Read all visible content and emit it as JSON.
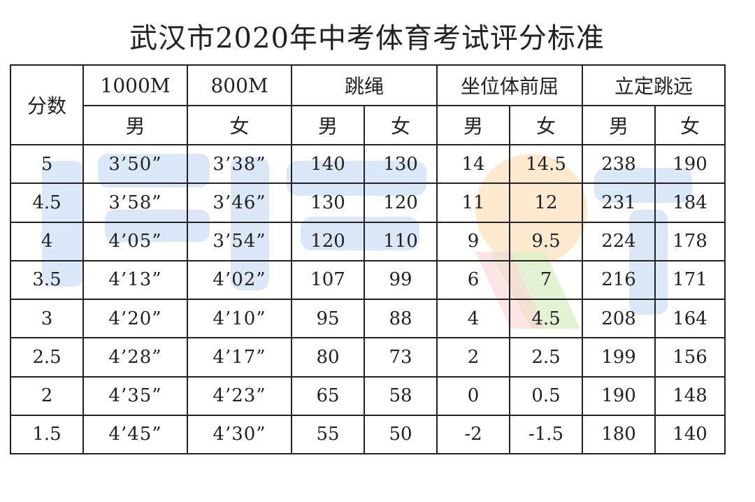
{
  "title": "武汉市2020年中考体育考试评分标准",
  "colors": {
    "border": "#222222",
    "watermark_blue": "#cfe0f5",
    "watermark_orange": "#fde2c4",
    "watermark_green": "#dcefc8"
  },
  "header": {
    "score_label": "分数",
    "events": [
      "1000M",
      "800M",
      "跳绳",
      "坐位体前屈",
      "立定跳远"
    ],
    "genders": [
      "男",
      "女",
      "男",
      "女",
      "男",
      "女",
      "男",
      "女"
    ]
  },
  "rows": [
    {
      "score": "5",
      "m1000": "3’50”",
      "m800": "3’38”",
      "rope_m": "140",
      "rope_f": "130",
      "sit_m": "14",
      "sit_f": "14.5",
      "jump_m": "238",
      "jump_f": "190"
    },
    {
      "score": "4.5",
      "m1000": "3’58”",
      "m800": "3’46”",
      "rope_m": "130",
      "rope_f": "120",
      "sit_m": "11",
      "sit_f": "12",
      "jump_m": "231",
      "jump_f": "184"
    },
    {
      "score": "4",
      "m1000": "4’05”",
      "m800": "3’54”",
      "rope_m": "120",
      "rope_f": "110",
      "sit_m": "9",
      "sit_f": "9.5",
      "jump_m": "224",
      "jump_f": "178"
    },
    {
      "score": "3.5",
      "m1000": "4’13”",
      "m800": "4’02”",
      "rope_m": "107",
      "rope_f": "99",
      "sit_m": "6",
      "sit_f": "7",
      "jump_m": "216",
      "jump_f": "171"
    },
    {
      "score": "3",
      "m1000": "4’20”",
      "m800": "4’10”",
      "rope_m": "95",
      "rope_f": "88",
      "sit_m": "4",
      "sit_f": "4.5",
      "jump_m": "208",
      "jump_f": "164"
    },
    {
      "score": "2.5",
      "m1000": "4’28”",
      "m800": "4’17”",
      "rope_m": "80",
      "rope_f": "73",
      "sit_m": "2",
      "sit_f": "2.5",
      "jump_m": "199",
      "jump_f": "156"
    },
    {
      "score": "2",
      "m1000": "4’35”",
      "m800": "4’23”",
      "rope_m": "65",
      "rope_f": "58",
      "sit_m": "0",
      "sit_f": "0.5",
      "jump_m": "190",
      "jump_f": "148"
    },
    {
      "score": "1.5",
      "m1000": "4’45”",
      "m800": "4’30”",
      "rope_m": "55",
      "rope_f": "50",
      "sit_m": "-2",
      "sit_f": "-1.5",
      "jump_m": "180",
      "jump_f": "140"
    }
  ]
}
